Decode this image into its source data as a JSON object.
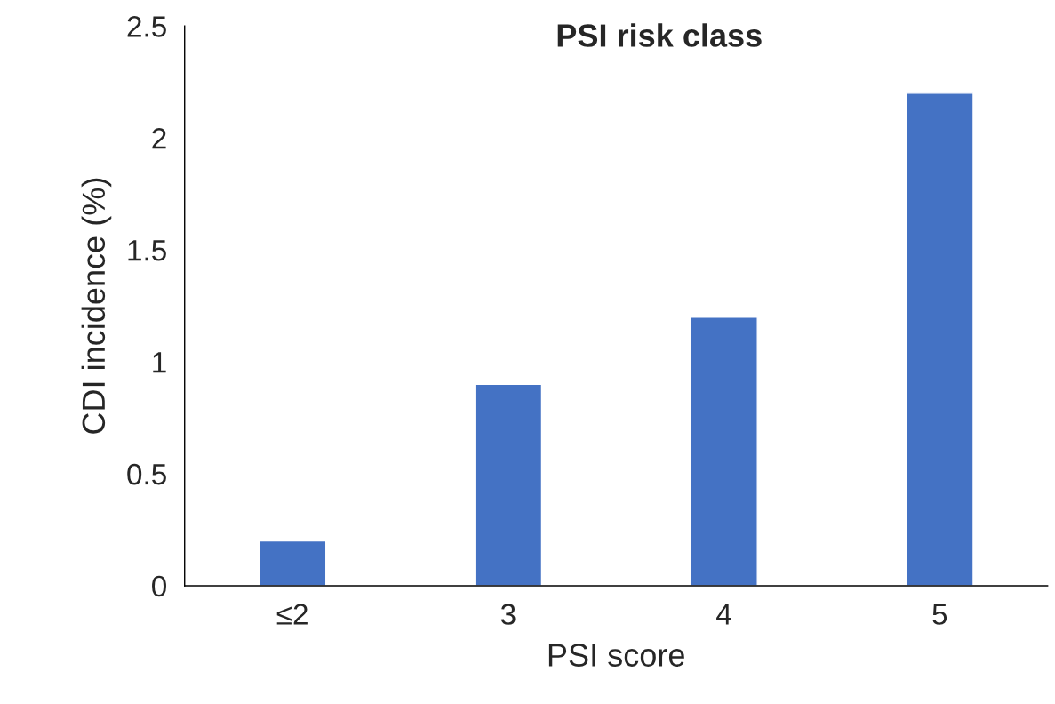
{
  "chart_data": {
    "type": "bar",
    "title": "PSI risk class",
    "xlabel": "PSI score",
    "ylabel": "CDI incidence (%)",
    "categories": [
      "≤2",
      "3",
      "4",
      "5"
    ],
    "values": [
      0.2,
      0.9,
      1.2,
      2.2
    ],
    "color": "#4472c4",
    "ylim": [
      0,
      2.5
    ],
    "yticks": [
      0,
      0.5,
      1,
      1.5,
      2,
      2.5
    ],
    "grid": false,
    "legend": false
  }
}
